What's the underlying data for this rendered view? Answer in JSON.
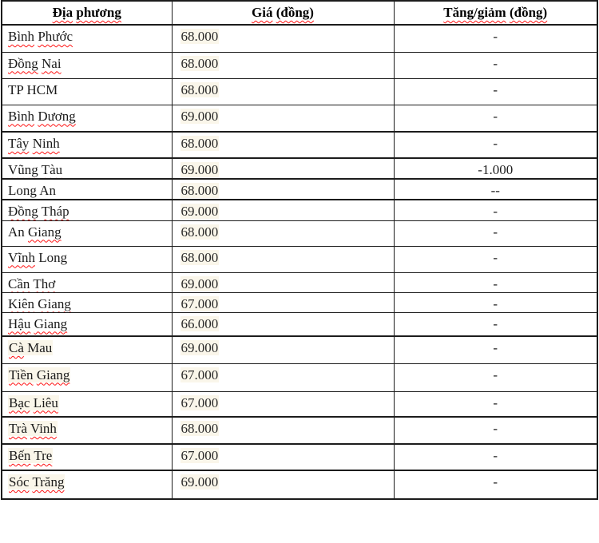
{
  "table": {
    "columns": [
      {
        "label": "Địa phương",
        "squiggle_words": [
          0,
          1
        ]
      },
      {
        "label": "Giá (đồng)",
        "squiggle_words": [
          0,
          1
        ]
      },
      {
        "label": "Tăng/giảm (đồng)",
        "squiggle_words": [
          0,
          1
        ]
      }
    ],
    "rows": [
      {
        "location": "Bình Phước",
        "squiggle_words": [
          0,
          1
        ],
        "price": "68.000",
        "change": "-",
        "name_highlight": false
      },
      {
        "location": "Đồng Nai",
        "squiggle_words": [
          0,
          1
        ],
        "price": "68.000",
        "change": "-",
        "name_highlight": false
      },
      {
        "location": "TP HCM",
        "squiggle_words": [],
        "price": "68.000",
        "change": "-",
        "name_highlight": false
      },
      {
        "location": "Bình Dương",
        "squiggle_words": [
          0,
          1
        ],
        "price": "69.000",
        "change": "-",
        "name_highlight": false
      },
      {
        "location": "Tây Ninh",
        "squiggle_words": [
          0,
          1
        ],
        "price": "68.000",
        "change": "-",
        "name_highlight": false
      },
      {
        "location": "Vũng Tàu",
        "squiggle_words": [
          0,
          1
        ],
        "price": "69.000",
        "change": "-1.000",
        "name_highlight": false
      },
      {
        "location": "Long An",
        "squiggle_words": [],
        "price": "68.000",
        "change": "--",
        "name_highlight": false
      },
      {
        "location": "Đồng Tháp",
        "squiggle_words": [
          0,
          1
        ],
        "price": "69.000",
        "change": "-",
        "name_highlight": false
      },
      {
        "location": "An Giang",
        "squiggle_words": [
          1
        ],
        "price": "68.000",
        "change": "-",
        "name_highlight": false
      },
      {
        "location": "Vĩnh Long",
        "squiggle_words": [
          0
        ],
        "price": "68.000",
        "change": "-",
        "name_highlight": false
      },
      {
        "location": "Cần Thơ",
        "squiggle_words": [
          0,
          1
        ],
        "price": "69.000",
        "change": "-",
        "name_highlight": false
      },
      {
        "location": "Kiên Giang",
        "squiggle_words": [
          0,
          1
        ],
        "price": "67.000",
        "change": "-",
        "name_highlight": false
      },
      {
        "location": "Hậu Giang",
        "squiggle_words": [
          0,
          1
        ],
        "price": "66.000",
        "change": "-",
        "name_highlight": false
      },
      {
        "location": "Cà Mau",
        "squiggle_words": [
          0
        ],
        "price": "69.000",
        "change": "-",
        "name_highlight": true
      },
      {
        "location": "Tiền Giang",
        "squiggle_words": [
          0,
          1
        ],
        "price": "67.000",
        "change": "-",
        "name_highlight": true
      },
      {
        "location": "Bạc Liêu",
        "squiggle_words": [
          0,
          1
        ],
        "price": "67.000",
        "change": "-",
        "name_highlight": true
      },
      {
        "location": "Trà Vinh",
        "squiggle_words": [
          0,
          1
        ],
        "price": "68.000",
        "change": "-",
        "name_highlight": true
      },
      {
        "location": "Bến Tre",
        "squiggle_words": [
          0,
          1
        ],
        "price": "67.000",
        "change": "-",
        "name_highlight": true
      },
      {
        "location": "Sóc Trăng",
        "squiggle_words": [
          0,
          1
        ],
        "price": "69.000",
        "change": "-",
        "name_highlight": true
      }
    ]
  },
  "colors": {
    "border": "#1c1c1c",
    "squiggle": "#ff1414",
    "text_highlight": "#faf6ea",
    "background": "#ffffff"
  }
}
